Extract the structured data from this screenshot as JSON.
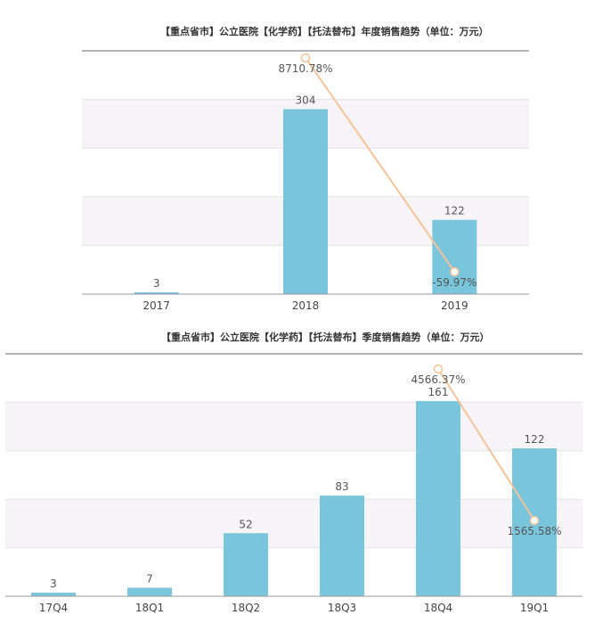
{
  "chart_data": [
    {
      "type": "bar",
      "title": "【重点省市】公立医院【化学药】【托法替布】年度销售趋势（单位：万元）",
      "categories": [
        "2017",
        "2018",
        "2019"
      ],
      "values": [
        3,
        304,
        122
      ],
      "value_labels": [
        "3",
        "304",
        "122"
      ],
      "ylim": [
        0,
        400
      ],
      "growth_line": {
        "points": [
          {
            "category": "2018",
            "value": 8710.78,
            "label": "8710.78%"
          },
          {
            "category": "2019",
            "value": -59.97,
            "label": "-59.97%"
          }
        ],
        "color": "#f5c39a"
      },
      "bar_color": "#78c5dc",
      "grid": true
    },
    {
      "type": "bar",
      "title": "【重点省市】公立医院【化学药】【托法替布】季度销售趋势（单位：万元）",
      "categories": [
        "17Q4",
        "18Q1",
        "18Q2",
        "18Q3",
        "18Q4",
        "19Q1"
      ],
      "values": [
        3,
        7,
        52,
        83,
        161,
        122
      ],
      "value_labels": [
        "3",
        "7",
        "52",
        "83",
        "161",
        "122"
      ],
      "ylim": [
        0,
        200
      ],
      "growth_line": {
        "points": [
          {
            "category": "18Q4",
            "value": 4566.37,
            "label": "4566.37%"
          },
          {
            "category": "19Q1",
            "value": 1565.58,
            "label": "1565.58%"
          }
        ],
        "color": "#f5c39a"
      },
      "bar_color": "#78c5dc",
      "grid": true
    }
  ]
}
